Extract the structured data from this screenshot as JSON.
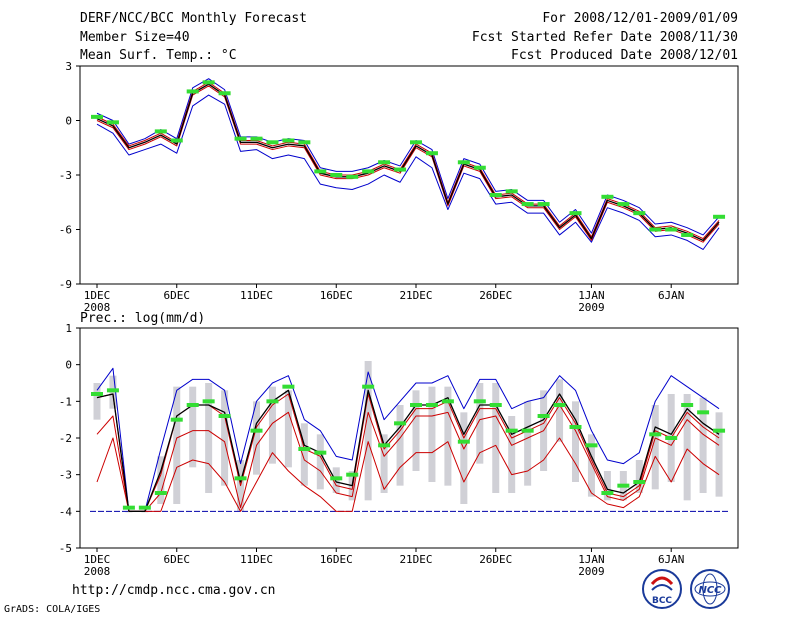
{
  "header": {
    "title": "DERF/NCC/BCC Monthly Forecast",
    "member_size": "Member Size=40",
    "variable": "Mean Surf. Temp.: °C",
    "period": "For 2008/12/01-2009/01/09",
    "fcst_started": "Fcst Started Refer Date 2008/11/30",
    "fcst_produced": "Fcst Produced Date 2008/12/01"
  },
  "footer": {
    "url": "http://cmdp.ncc.cma.gov.cn",
    "credit": "GrADS: COLA/IGES",
    "logo_bcc": "BCC",
    "logo_ncc": "NCC"
  },
  "colors": {
    "frame": "#000000",
    "mean": "#000000",
    "spread": "#cc0000",
    "envelope": "#0000cc",
    "observed": "#33dd33",
    "bars": "#d0d0d6",
    "base": "#0000aa"
  },
  "chart_data": [
    {
      "type": "line",
      "title": "Mean Surf. Temp.: °C",
      "xlabel": "",
      "ylabel": "",
      "x": [
        1,
        2,
        3,
        4,
        5,
        6,
        7,
        8,
        9,
        10,
        11,
        12,
        13,
        14,
        15,
        16,
        17,
        18,
        19,
        20,
        21,
        22,
        23,
        24,
        25,
        26,
        27,
        28,
        29,
        30,
        31,
        32,
        33,
        34,
        35,
        36,
        37,
        38,
        39,
        40
      ],
      "xticks": [
        {
          "x": 1,
          "label": "1DEC",
          "sub": "2008"
        },
        {
          "x": 6,
          "label": "6DEC"
        },
        {
          "x": 11,
          "label": "11DEC"
        },
        {
          "x": 16,
          "label": "16DEC"
        },
        {
          "x": 21,
          "label": "21DEC"
        },
        {
          "x": 26,
          "label": "26DEC"
        },
        {
          "x": 32,
          "label": "1JAN",
          "sub": "2009"
        },
        {
          "x": 37,
          "label": "6JAN"
        }
      ],
      "ylim": [
        -9,
        3
      ],
      "yticks": [
        3,
        0,
        -3,
        -6,
        -9
      ],
      "series": [
        {
          "name": "max",
          "role": "envelope",
          "values": [
            0.4,
            0.0,
            -1.3,
            -1.0,
            -0.5,
            -1.0,
            1.8,
            2.3,
            1.7,
            -0.9,
            -0.9,
            -1.2,
            -1.0,
            -1.1,
            -2.6,
            -2.8,
            -2.8,
            -2.6,
            -2.2,
            -2.5,
            -1.1,
            -1.6,
            -4.3,
            -2.1,
            -2.4,
            -3.9,
            -3.8,
            -4.4,
            -4.4,
            -5.6,
            -4.9,
            -6.2,
            -4.1,
            -4.4,
            -4.8,
            -5.7,
            -5.6,
            -5.9,
            -6.3,
            -5.3
          ]
        },
        {
          "name": "upper",
          "role": "spread",
          "values": [
            0.2,
            -0.2,
            -1.4,
            -1.1,
            -0.7,
            -1.2,
            1.6,
            2.1,
            1.5,
            -1.1,
            -1.1,
            -1.4,
            -1.2,
            -1.3,
            -2.8,
            -3.0,
            -3.0,
            -2.8,
            -2.4,
            -2.7,
            -1.3,
            -1.8,
            -4.5,
            -2.3,
            -2.6,
            -4.1,
            -4.0,
            -4.6,
            -4.6,
            -5.8,
            -5.1,
            -6.4,
            -4.3,
            -4.6,
            -5.0,
            -5.9,
            -5.8,
            -6.1,
            -6.5,
            -5.5
          ]
        },
        {
          "name": "mean",
          "role": "mean",
          "values": [
            0.1,
            -0.3,
            -1.5,
            -1.2,
            -0.8,
            -1.3,
            1.5,
            2.0,
            1.4,
            -1.2,
            -1.2,
            -1.5,
            -1.3,
            -1.4,
            -2.9,
            -3.1,
            -3.1,
            -2.9,
            -2.5,
            -2.8,
            -1.4,
            -1.9,
            -4.6,
            -2.4,
            -2.7,
            -4.2,
            -4.1,
            -4.7,
            -4.7,
            -5.9,
            -5.2,
            -6.5,
            -4.4,
            -4.7,
            -5.1,
            -6.0,
            -5.9,
            -6.2,
            -6.6,
            -5.6
          ]
        },
        {
          "name": "lower",
          "role": "spread",
          "values": [
            0.0,
            -0.4,
            -1.6,
            -1.3,
            -0.9,
            -1.4,
            1.4,
            1.9,
            1.3,
            -1.3,
            -1.3,
            -1.6,
            -1.4,
            -1.5,
            -3.0,
            -3.2,
            -3.2,
            -3.0,
            -2.6,
            -2.9,
            -1.5,
            -2.0,
            -4.7,
            -2.5,
            -2.8,
            -4.3,
            -4.2,
            -4.8,
            -4.8,
            -6.0,
            -5.3,
            -6.6,
            -4.5,
            -4.8,
            -5.2,
            -6.1,
            -6.0,
            -6.3,
            -6.7,
            -5.7
          ]
        },
        {
          "name": "min",
          "role": "envelope",
          "values": [
            -0.2,
            -0.7,
            -1.9,
            -1.6,
            -1.3,
            -1.8,
            0.8,
            1.4,
            0.9,
            -1.7,
            -1.6,
            -2.1,
            -1.9,
            -2.1,
            -3.5,
            -3.7,
            -3.8,
            -3.5,
            -3.0,
            -3.4,
            -2.0,
            -2.6,
            -4.9,
            -2.9,
            -3.2,
            -4.6,
            -4.5,
            -5.1,
            -5.1,
            -6.3,
            -5.6,
            -6.7,
            -4.8,
            -5.1,
            -5.5,
            -6.4,
            -6.3,
            -6.6,
            -7.1,
            -5.9
          ]
        },
        {
          "name": "observed",
          "role": "observed",
          "values": [
            0.2,
            -0.1,
            null,
            null,
            -0.6,
            -1.1,
            1.6,
            2.1,
            1.5,
            -1.0,
            -1.0,
            -1.2,
            -1.1,
            -1.2,
            -2.8,
            -3.0,
            -3.1,
            -2.8,
            -2.3,
            -2.7,
            -1.2,
            -1.8,
            null,
            -2.3,
            -2.6,
            -4.1,
            -3.9,
            -4.6,
            -4.6,
            null,
            -5.1,
            null,
            -4.2,
            -4.6,
            -5.1,
            -6.0,
            -6.0,
            -6.3,
            null,
            -5.3
          ]
        }
      ]
    },
    {
      "type": "line",
      "title": "Prec.: log(mm/d)",
      "xlabel": "",
      "ylabel": "",
      "x": [
        1,
        2,
        3,
        4,
        5,
        6,
        7,
        8,
        9,
        10,
        11,
        12,
        13,
        14,
        15,
        16,
        17,
        18,
        19,
        20,
        21,
        22,
        23,
        24,
        25,
        26,
        27,
        28,
        29,
        30,
        31,
        32,
        33,
        34,
        35,
        36,
        37,
        38,
        39,
        40
      ],
      "xticks": [
        {
          "x": 1,
          "label": "1DEC",
          "sub": "2008"
        },
        {
          "x": 6,
          "label": "6DEC"
        },
        {
          "x": 11,
          "label": "11DEC"
        },
        {
          "x": 16,
          "label": "16DEC"
        },
        {
          "x": 21,
          "label": "21DEC"
        },
        {
          "x": 26,
          "label": "26DEC"
        },
        {
          "x": 32,
          "label": "1JAN",
          "sub": "2009"
        },
        {
          "x": 37,
          "label": "6JAN"
        }
      ],
      "ylim": [
        -5,
        1
      ],
      "yticks": [
        1,
        0,
        -1,
        -2,
        -3,
        -4,
        -5
      ],
      "baseline": -4,
      "series": [
        {
          "name": "max",
          "role": "envelope",
          "values": [
            -0.7,
            -0.1,
            -4.0,
            -4.0,
            -2.3,
            -0.7,
            -0.4,
            -0.4,
            -0.7,
            -2.7,
            -1.0,
            -0.5,
            -0.3,
            -1.5,
            -1.8,
            -2.5,
            -2.6,
            -0.2,
            -1.5,
            -1.0,
            -0.5,
            -0.5,
            -0.3,
            -1.2,
            -0.4,
            -0.4,
            -1.2,
            -1.0,
            -0.9,
            -0.3,
            -0.7,
            -1.8,
            -2.6,
            -2.7,
            -2.4,
            -1.0,
            -0.3,
            -0.6,
            -0.9,
            -1.2
          ]
        },
        {
          "name": "upper",
          "role": "spread",
          "values": [
            -0.9,
            -0.8,
            -4.0,
            -4.0,
            -3.0,
            -1.4,
            -1.1,
            -1.1,
            -1.4,
            -3.3,
            -1.7,
            -1.1,
            -0.8,
            -2.3,
            -2.5,
            -3.3,
            -3.4,
            -0.8,
            -2.3,
            -1.8,
            -1.2,
            -1.2,
            -1.0,
            -2.0,
            -1.2,
            -1.2,
            -2.0,
            -1.8,
            -1.6,
            -0.9,
            -1.6,
            -2.6,
            -3.5,
            -3.6,
            -3.3,
            -1.8,
            -2.0,
            -1.3,
            -1.7,
            -2.0
          ]
        },
        {
          "name": "mean",
          "role": "mean",
          "values": [
            -0.9,
            -0.8,
            -4.0,
            -4.0,
            -2.9,
            -1.4,
            -1.1,
            -1.1,
            -1.3,
            -3.2,
            -1.6,
            -1.0,
            -0.7,
            -2.2,
            -2.4,
            -3.2,
            -3.3,
            -0.7,
            -2.2,
            -1.7,
            -1.1,
            -1.1,
            -0.9,
            -1.9,
            -1.1,
            -1.1,
            -1.9,
            -1.7,
            -1.5,
            -0.8,
            -1.5,
            -2.5,
            -3.4,
            -3.5,
            -3.2,
            -1.7,
            -1.9,
            -1.2,
            -1.6,
            -1.9
          ]
        },
        {
          "name": "lower",
          "role": "spread",
          "values": [
            -1.9,
            -1.4,
            -4.0,
            -4.0,
            -3.5,
            -2.0,
            -1.8,
            -1.8,
            -2.1,
            -3.9,
            -2.2,
            -1.6,
            -1.3,
            -2.6,
            -2.9,
            -3.5,
            -3.6,
            -1.3,
            -2.5,
            -2.0,
            -1.4,
            -1.4,
            -1.3,
            -2.3,
            -1.5,
            -1.4,
            -2.2,
            -2.0,
            -1.8,
            -1.1,
            -1.8,
            -2.7,
            -3.6,
            -3.7,
            -3.4,
            -2.0,
            -2.2,
            -1.5,
            -1.9,
            -2.2
          ]
        },
        {
          "name": "min",
          "role": "spread",
          "values": [
            -3.2,
            -2.0,
            -4.0,
            -4.0,
            -4.0,
            -2.8,
            -2.6,
            -2.7,
            -3.2,
            -4.0,
            -3.2,
            -2.4,
            -2.9,
            -3.3,
            -3.6,
            -4.0,
            -4.0,
            -2.1,
            -3.4,
            -2.8,
            -2.4,
            -2.4,
            -2.1,
            -3.2,
            -2.4,
            -2.2,
            -3.0,
            -2.9,
            -2.6,
            -2.0,
            -2.7,
            -3.5,
            -3.8,
            -3.9,
            -3.6,
            -2.5,
            -3.2,
            -2.3,
            -2.7,
            -3.0
          ]
        },
        {
          "name": "observed",
          "role": "observed",
          "values": [
            -0.8,
            -0.7,
            -3.9,
            -3.9,
            -3.5,
            -1.5,
            -1.1,
            -1.0,
            -1.4,
            -3.1,
            -1.8,
            -1.0,
            -0.6,
            -2.3,
            -2.4,
            -3.1,
            -3.0,
            -0.6,
            -2.2,
            -1.6,
            -1.1,
            -1.1,
            -1.0,
            -2.1,
            -1.0,
            -1.1,
            -1.8,
            -1.8,
            -1.4,
            -1.1,
            -1.7,
            -2.2,
            -3.5,
            -3.3,
            -3.2,
            -1.9,
            -2.0,
            -1.1,
            -1.3,
            -1.8
          ]
        },
        {
          "name": "box_high",
          "role": "bars",
          "values": [
            -0.5,
            -0.3,
            -4.0,
            -4.0,
            -2.5,
            -0.6,
            -0.6,
            -0.5,
            -0.7,
            -2.6,
            -1.0,
            -0.6,
            -0.7,
            -1.6,
            -1.9,
            -2.8,
            -2.9,
            0.1,
            -1.9,
            -1.1,
            -0.7,
            -0.6,
            -0.6,
            -1.3,
            -0.5,
            -0.5,
            -1.4,
            -1.0,
            -0.7,
            -0.4,
            -1.0,
            -1.9,
            -2.9,
            -2.9,
            -2.6,
            -1.1,
            -0.8,
            -0.8,
            -0.9,
            -1.3
          ]
        },
        {
          "name": "box_low",
          "role": "bars",
          "values": [
            -1.5,
            -1.2,
            -4.0,
            -4.0,
            -3.8,
            -3.8,
            -2.8,
            -3.5,
            -3.3,
            -4.0,
            -3.0,
            -2.7,
            -2.8,
            -3.3,
            -3.4,
            -3.5,
            -3.7,
            -3.7,
            -3.5,
            -3.3,
            -2.9,
            -3.2,
            -3.3,
            -3.8,
            -2.7,
            -3.5,
            -3.5,
            -3.3,
            -2.9,
            -2.1,
            -3.2,
            -3.6,
            -3.7,
            -3.7,
            -3.5,
            -3.4,
            -3.2,
            -3.7,
            -3.5,
            -3.6
          ]
        }
      ]
    }
  ]
}
